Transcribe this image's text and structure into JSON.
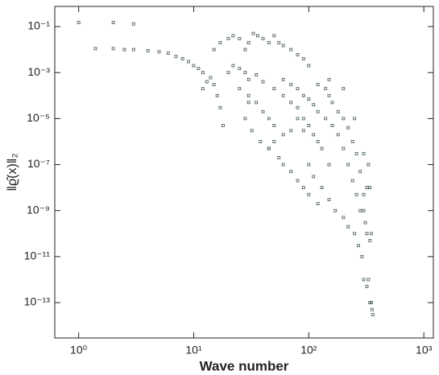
{
  "chart_data": {
    "type": "scatter",
    "xlabel": "Wave number",
    "ylabel": "‖ϱ̂(x)‖₂",
    "xlog": true,
    "ylog": true,
    "color": "#3d5257",
    "marker": "open-square",
    "xlim": [
      0.62,
      1210
    ],
    "ylim": [
      2.9e-15,
      0.75
    ],
    "xticks": [
      {
        "value": 1,
        "label": "10⁰"
      },
      {
        "value": 10,
        "label": "10¹"
      },
      {
        "value": 100,
        "label": "10²"
      },
      {
        "value": 1000,
        "label": "10³"
      }
    ],
    "yticks": [
      {
        "value": 1e-13,
        "label": "10⁻¹³"
      },
      {
        "value": 1e-11,
        "label": "10⁻¹¹"
      },
      {
        "value": 1e-09,
        "label": "10⁻⁹"
      },
      {
        "value": 1e-07,
        "label": "10⁻⁷"
      },
      {
        "value": 1e-05,
        "label": "10⁻⁵"
      },
      {
        "value": 0.001,
        "label": "10⁻³"
      },
      {
        "value": 0.1,
        "label": "10⁻¹"
      }
    ],
    "x": [
      1,
      2,
      3,
      1.4,
      2,
      2.5,
      3,
      4,
      5,
      6,
      7,
      8,
      9,
      10,
      11,
      12,
      14,
      15,
      16,
      17,
      18,
      13,
      12,
      15,
      17,
      20,
      22,
      25,
      28,
      30,
      33,
      36,
      40,
      45,
      50,
      55,
      60,
      70,
      80,
      90,
      100,
      20,
      22,
      25,
      28,
      30,
      35,
      40,
      25,
      30,
      35,
      40,
      45,
      50,
      30,
      28,
      32,
      38,
      45,
      55,
      60,
      70,
      80,
      90,
      100,
      120,
      50,
      60,
      70,
      80,
      90,
      100,
      110,
      120,
      130,
      150,
      60,
      70,
      80,
      90,
      100,
      110,
      120,
      140,
      160,
      180,
      200,
      220,
      240,
      260,
      280,
      120,
      140,
      150,
      160,
      180,
      200,
      220,
      240,
      260,
      280,
      300,
      150,
      200,
      250,
      300,
      100,
      110,
      130,
      150,
      170,
      200,
      220,
      250,
      270,
      290,
      300,
      320,
      330,
      340,
      320,
      310,
      350,
      355,
      360,
      340,
      300,
      320,
      330,
      340,
      350,
      80,
      90,
      70,
      60,
      50,
      45
    ],
    "y": [
      0.15,
      0.15,
      0.13,
      0.011,
      0.011,
      0.01,
      0.01,
      0.009,
      0.008,
      0.007,
      0.005,
      0.004,
      0.003,
      0.002,
      0.0015,
      0.001,
      0.0006,
      0.0003,
      0.0001,
      3e-05,
      5e-06,
      0.0004,
      0.0002,
      0.01,
      0.02,
      0.03,
      0.04,
      0.03,
      0.01,
      0.02,
      0.05,
      0.04,
      0.03,
      0.02,
      0.04,
      0.02,
      0.015,
      0.01,
      0.006,
      0.004,
      0.002,
      0.001,
      0.002,
      0.0015,
      0.001,
      0.0005,
      0.0008,
      0.0004,
      0.0002,
      0.0001,
      5e-05,
      2e-05,
      1e-05,
      5e-06,
      5e-05,
      1e-05,
      3e-06,
      1e-06,
      5e-07,
      2e-07,
      1e-07,
      5e-08,
      2e-08,
      1e-08,
      5e-09,
      2e-09,
      0.0002,
      0.0001,
      5e-05,
      3e-05,
      1e-05,
      5e-06,
      2e-06,
      1e-06,
      5e-07,
      1e-07,
      0.0005,
      0.0003,
      0.0002,
      0.0001,
      7e-05,
      4e-05,
      2e-05,
      1e-05,
      5e-06,
      2e-06,
      5e-07,
      1e-07,
      2e-08,
      5e-09,
      1e-09,
      0.0003,
      0.0002,
      0.0001,
      5e-05,
      2e-05,
      1e-05,
      4e-06,
      1e-06,
      3e-07,
      5e-08,
      5e-09,
      0.0005,
      0.0002,
      1e-05,
      3e-07,
      1e-07,
      3e-08,
      1e-08,
      3e-09,
      1e-09,
      5e-10,
      2e-10,
      1e-10,
      3e-11,
      1e-11,
      1e-12,
      5e-13,
      1e-12,
      5e-11,
      1e-10,
      3e-10,
      1e-13,
      5e-14,
      3e-14,
      1e-13,
      1e-09,
      1e-08,
      1e-07,
      1e-08,
      1e-10,
      1e-05,
      3e-06,
      3e-06,
      2e-06,
      1e-06,
      5e-07
    ]
  }
}
